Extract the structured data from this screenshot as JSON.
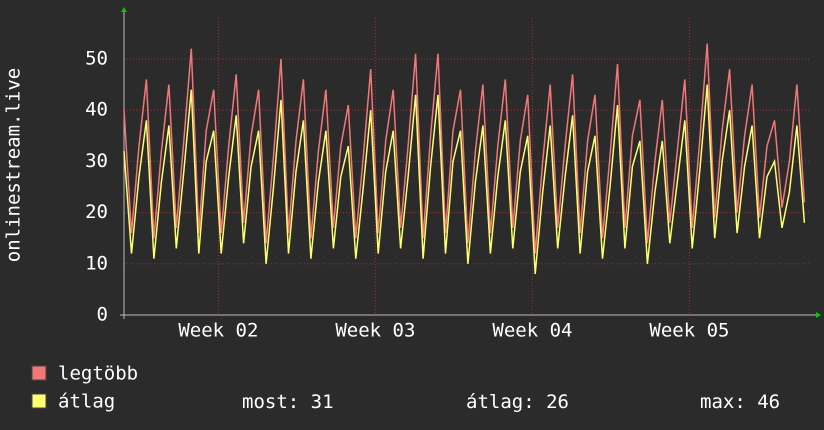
{
  "chart_data": {
    "type": "line",
    "y_label": "onlinestream.live",
    "x": [
      0,
      8,
      16,
      24,
      32,
      40,
      48,
      56,
      64,
      72,
      80,
      88,
      96,
      104,
      112,
      120,
      128,
      136,
      144,
      152,
      160,
      168,
      176,
      184,
      192,
      200,
      208,
      216,
      224,
      232,
      240,
      248,
      256,
      264,
      272,
      280,
      288,
      296,
      304,
      312,
      320,
      328,
      336,
      344,
      352,
      360,
      368,
      376,
      384,
      392,
      400,
      408,
      416,
      424,
      432,
      440,
      448,
      456,
      464,
      472,
      480,
      488,
      496,
      504,
      512,
      520,
      528,
      536,
      544,
      552,
      560,
      568,
      576,
      584,
      592,
      600,
      608,
      616,
      624,
      632,
      640,
      648,
      656,
      664,
      672,
      680,
      688,
      696,
      704,
      712,
      720,
      728
    ],
    "xlim": [
      0,
      734
    ],
    "xticks": [
      {
        "value": 101,
        "label": "Week 02"
      },
      {
        "value": 269,
        "label": "Week 03"
      },
      {
        "value": 437,
        "label": "Week 04"
      },
      {
        "value": 605,
        "label": "Week 05"
      }
    ],
    "ylim": [
      0,
      58
    ],
    "yticks": [
      0,
      10,
      20,
      30,
      40,
      50
    ],
    "grid": true,
    "series": [
      {
        "name": "legtöbb",
        "color": "#f07878",
        "values": [
          40,
          16,
          33,
          46,
          15,
          32,
          45,
          17,
          34,
          52,
          16,
          36,
          44,
          16,
          33,
          47,
          18,
          35,
          44,
          14,
          31,
          50,
          16,
          34,
          46,
          15,
          32,
          44,
          17,
          33,
          41,
          15,
          31,
          48,
          16,
          34,
          44,
          17,
          33,
          51,
          15,
          35,
          51,
          16,
          36,
          44,
          14,
          32,
          45,
          16,
          33,
          46,
          17,
          34,
          43,
          12,
          30,
          45,
          17,
          33,
          47,
          16,
          34,
          43,
          15,
          31,
          49,
          17,
          35,
          42,
          14,
          30,
          42,
          18,
          32,
          46,
          17,
          34,
          53,
          19,
          36,
          48,
          20,
          35,
          45,
          19,
          33,
          38,
          21,
          30,
          45,
          22
        ]
      },
      {
        "name": "átlag",
        "color": "#ffff70",
        "values": [
          32,
          12,
          27,
          38,
          11,
          26,
          37,
          13,
          28,
          44,
          12,
          30,
          36,
          12,
          27,
          39,
          14,
          29,
          36,
          10,
          25,
          42,
          12,
          28,
          38,
          11,
          26,
          36,
          13,
          27,
          33,
          11,
          25,
          40,
          12,
          28,
          36,
          13,
          27,
          43,
          11,
          29,
          43,
          12,
          30,
          36,
          10,
          26,
          37,
          12,
          27,
          38,
          13,
          28,
          35,
          8,
          24,
          37,
          13,
          27,
          39,
          12,
          28,
          35,
          11,
          25,
          41,
          13,
          29,
          34,
          10,
          24,
          34,
          14,
          26,
          38,
          13,
          28,
          45,
          15,
          30,
          40,
          16,
          29,
          37,
          15,
          27,
          30,
          17,
          24,
          37,
          18
        ]
      }
    ],
    "stats": [
      {
        "label": "most:",
        "value": 31
      },
      {
        "label": "átlag:",
        "value": 26
      },
      {
        "label": "max:",
        "value": 46
      }
    ]
  }
}
